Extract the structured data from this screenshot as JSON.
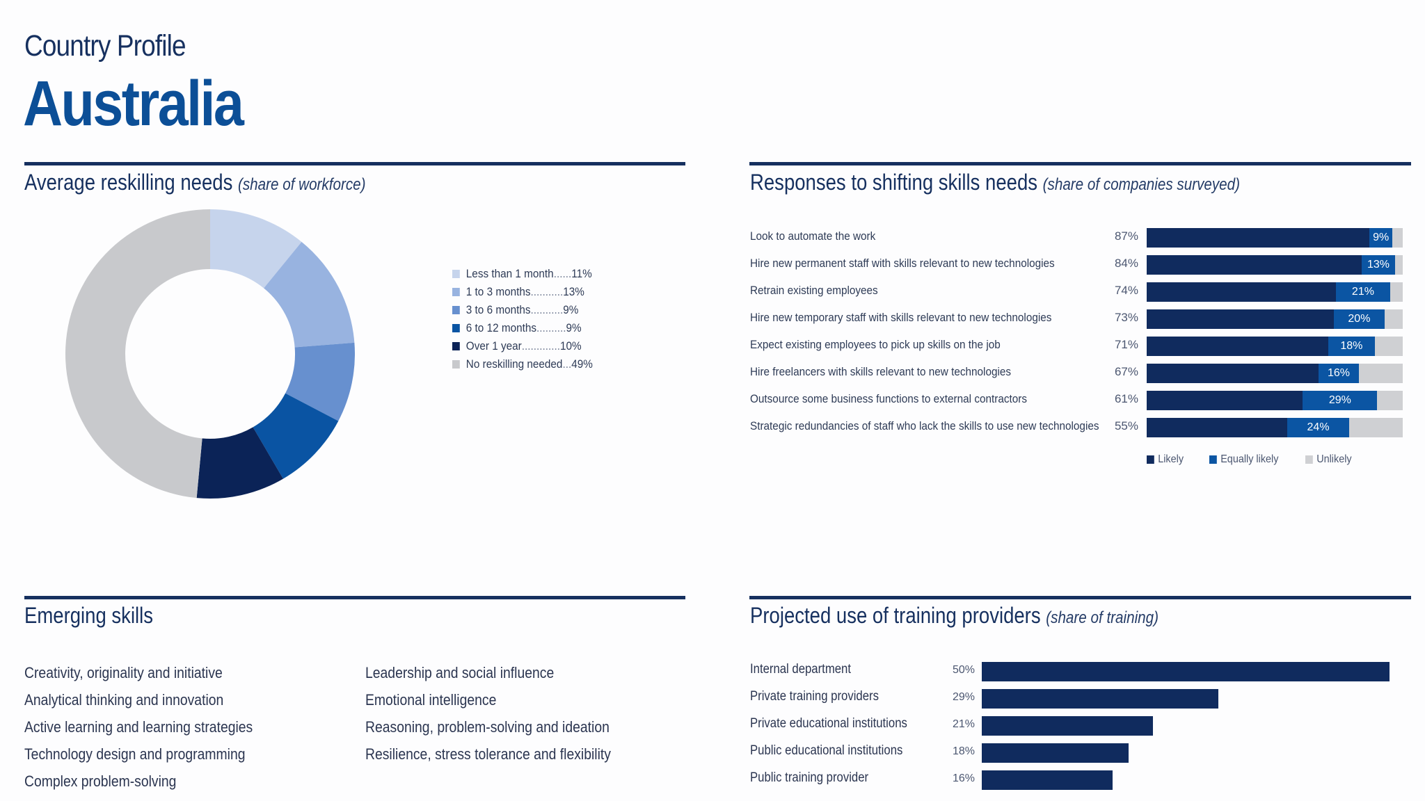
{
  "header": {
    "kicker": "Country Profile",
    "country": "Australia"
  },
  "reskilling": {
    "title": "Average reskilling needs",
    "subtitle": "(share of workforce)",
    "colors": [
      "#c6d4ec",
      "#98b3e0",
      "#6790cf",
      "#0a54a3",
      "#0b2357",
      "#c8c9cc"
    ]
  },
  "responses": {
    "title": "Responses to shifting skills needs",
    "subtitle": "(share of companies surveyed)",
    "colors": {
      "likely": "#102b5e",
      "equally_likely": "#0b55a3",
      "unlikely": "#cfd0d3"
    },
    "legend": [
      "Likely",
      "Equally likely",
      "Unlikely"
    ]
  },
  "emerging": {
    "title": "Emerging skills",
    "col1": [
      "Creativity, originality and initiative",
      "Analytical thinking and innovation",
      "Active learning and learning strategies",
      "Technology design and programming",
      "Complex problem-solving"
    ],
    "col2": [
      "Leadership and social influence",
      "Emotional intelligence",
      "Reasoning, problem-solving and ideation",
      "Resilience, stress tolerance and flexibility"
    ]
  },
  "training": {
    "title": "Projected use of training providers",
    "subtitle": "(share of training)",
    "color": "#102b5e"
  },
  "chart_data": [
    {
      "type": "pie",
      "title": "Average reskilling needs (share of workforce)",
      "categories": [
        "Less than 1 month",
        "1 to 3 months",
        "3 to 6 months",
        "6 to 12 months",
        "Over 1 year",
        "No reskilling needed"
      ],
      "values": [
        11,
        13,
        9,
        9,
        10,
        49
      ],
      "labels": [
        "11%",
        "13%",
        "9%",
        "9%",
        "10%",
        "49%"
      ],
      "donut": true
    },
    {
      "type": "bar",
      "orientation": "horizontal",
      "stacked": true,
      "title": "Responses to shifting skills needs (share of companies surveyed)",
      "categories": [
        "Look to automate the work",
        "Hire new permanent staff with skills relevant to new technologies",
        "Retrain existing employees",
        "Hire new temporary staff with skills relevant to new technologies",
        "Expect existing employees to pick up skills on the job",
        "Hire freelancers with skills relevant to new technologies",
        "Outsource some business functions to external contractors",
        "Strategic redundancies of staff who lack the skills to use new technologies"
      ],
      "series": [
        {
          "name": "Likely",
          "values": [
            87,
            84,
            74,
            73,
            71,
            67,
            61,
            55
          ],
          "labels": [
            "87%",
            "84%",
            "74%",
            "73%",
            "71%",
            "67%",
            "61%",
            "55%"
          ]
        },
        {
          "name": "Equally likely",
          "values": [
            9,
            13,
            21,
            20,
            18,
            16,
            29,
            24
          ],
          "labels": [
            "9%",
            "13%",
            "21%",
            "20%",
            "18%",
            "16%",
            "29%",
            "24%"
          ]
        },
        {
          "name": "Unlikely",
          "values": [
            4,
            3,
            5,
            7,
            11,
            17,
            10,
            21
          ]
        }
      ],
      "xlim": [
        0,
        100
      ]
    },
    {
      "type": "bar",
      "orientation": "horizontal",
      "title": "Projected use of training providers (share of training)",
      "categories": [
        "Internal department",
        "Private training providers",
        "Private educational institutions",
        "Public educational institutions",
        "Public training provider"
      ],
      "values": [
        50,
        29,
        21,
        18,
        16
      ],
      "labels": [
        "50%",
        "29%",
        "21%",
        "18%",
        "16%"
      ],
      "xlim": [
        0,
        50
      ]
    }
  ]
}
